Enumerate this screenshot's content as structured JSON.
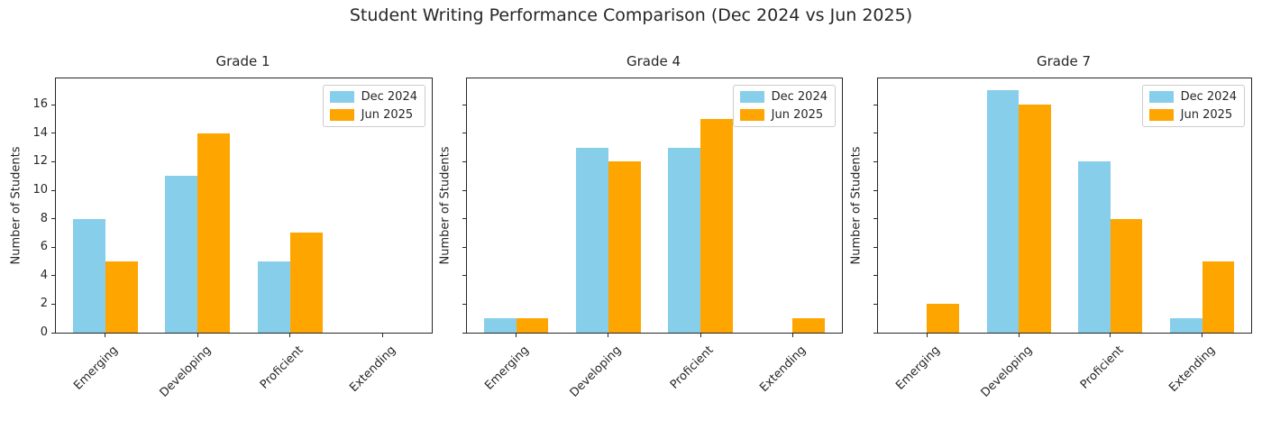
{
  "suptitle": "Student Writing Performance Comparison (Dec 2024 vs Jun 2025)",
  "colors": {
    "background": "#FFFFFF",
    "dec_2024": "#87CEEB",
    "jun_2025": "#FFA500",
    "axis": "#262626",
    "text": "#262626",
    "legend_border": "#CCCCCC"
  },
  "legend": {
    "position": "upper right",
    "items": [
      {
        "label": "Dec 2024",
        "color": "#87CEEB"
      },
      {
        "label": "Jun 2025",
        "color": "#FFA500"
      }
    ]
  },
  "chart_data": [
    {
      "type": "bar",
      "title": "Grade 1",
      "categories": [
        "Emerging",
        "Developing",
        "Proficient",
        "Extending"
      ],
      "series": [
        {
          "name": "Dec 2024",
          "color": "#87CEEB",
          "values": [
            8,
            11,
            5,
            0
          ]
        },
        {
          "name": "Jun 2025",
          "color": "#FFA500",
          "values": [
            5,
            14,
            7,
            0
          ]
        }
      ],
      "xlabel": "",
      "ylabel": "Number of Students",
      "ylim": [
        0,
        17.85
      ],
      "yticks": [
        0,
        2,
        4,
        6,
        8,
        10,
        12,
        14,
        16
      ],
      "ytick_labels_visible": true,
      "xtick_rotation_deg": 45,
      "grid": false,
      "legend_position": "upper right"
    },
    {
      "type": "bar",
      "title": "Grade 4",
      "categories": [
        "Emerging",
        "Developing",
        "Proficient",
        "Extending"
      ],
      "series": [
        {
          "name": "Dec 2024",
          "color": "#87CEEB",
          "values": [
            1,
            13,
            13,
            0
          ]
        },
        {
          "name": "Jun 2025",
          "color": "#FFA500",
          "values": [
            1,
            12,
            15,
            1
          ]
        }
      ],
      "xlabel": "",
      "ylabel": "Number of Students",
      "ylim": [
        0,
        17.85
      ],
      "yticks": [
        0,
        2,
        4,
        6,
        8,
        10,
        12,
        14,
        16
      ],
      "ytick_labels_visible": false,
      "xtick_rotation_deg": 45,
      "grid": false,
      "legend_position": "upper right"
    },
    {
      "type": "bar",
      "title": "Grade 7",
      "categories": [
        "Emerging",
        "Developing",
        "Proficient",
        "Extending"
      ],
      "series": [
        {
          "name": "Dec 2024",
          "color": "#87CEEB",
          "values": [
            0,
            17,
            12,
            1
          ]
        },
        {
          "name": "Jun 2025",
          "color": "#FFA500",
          "values": [
            2,
            16,
            8,
            5
          ]
        }
      ],
      "xlabel": "",
      "ylabel": "Number of Students",
      "ylim": [
        0,
        17.85
      ],
      "yticks": [
        0,
        2,
        4,
        6,
        8,
        10,
        12,
        14,
        16
      ],
      "ytick_labels_visible": false,
      "xtick_rotation_deg": 45,
      "grid": false,
      "legend_position": "upper right"
    }
  ]
}
